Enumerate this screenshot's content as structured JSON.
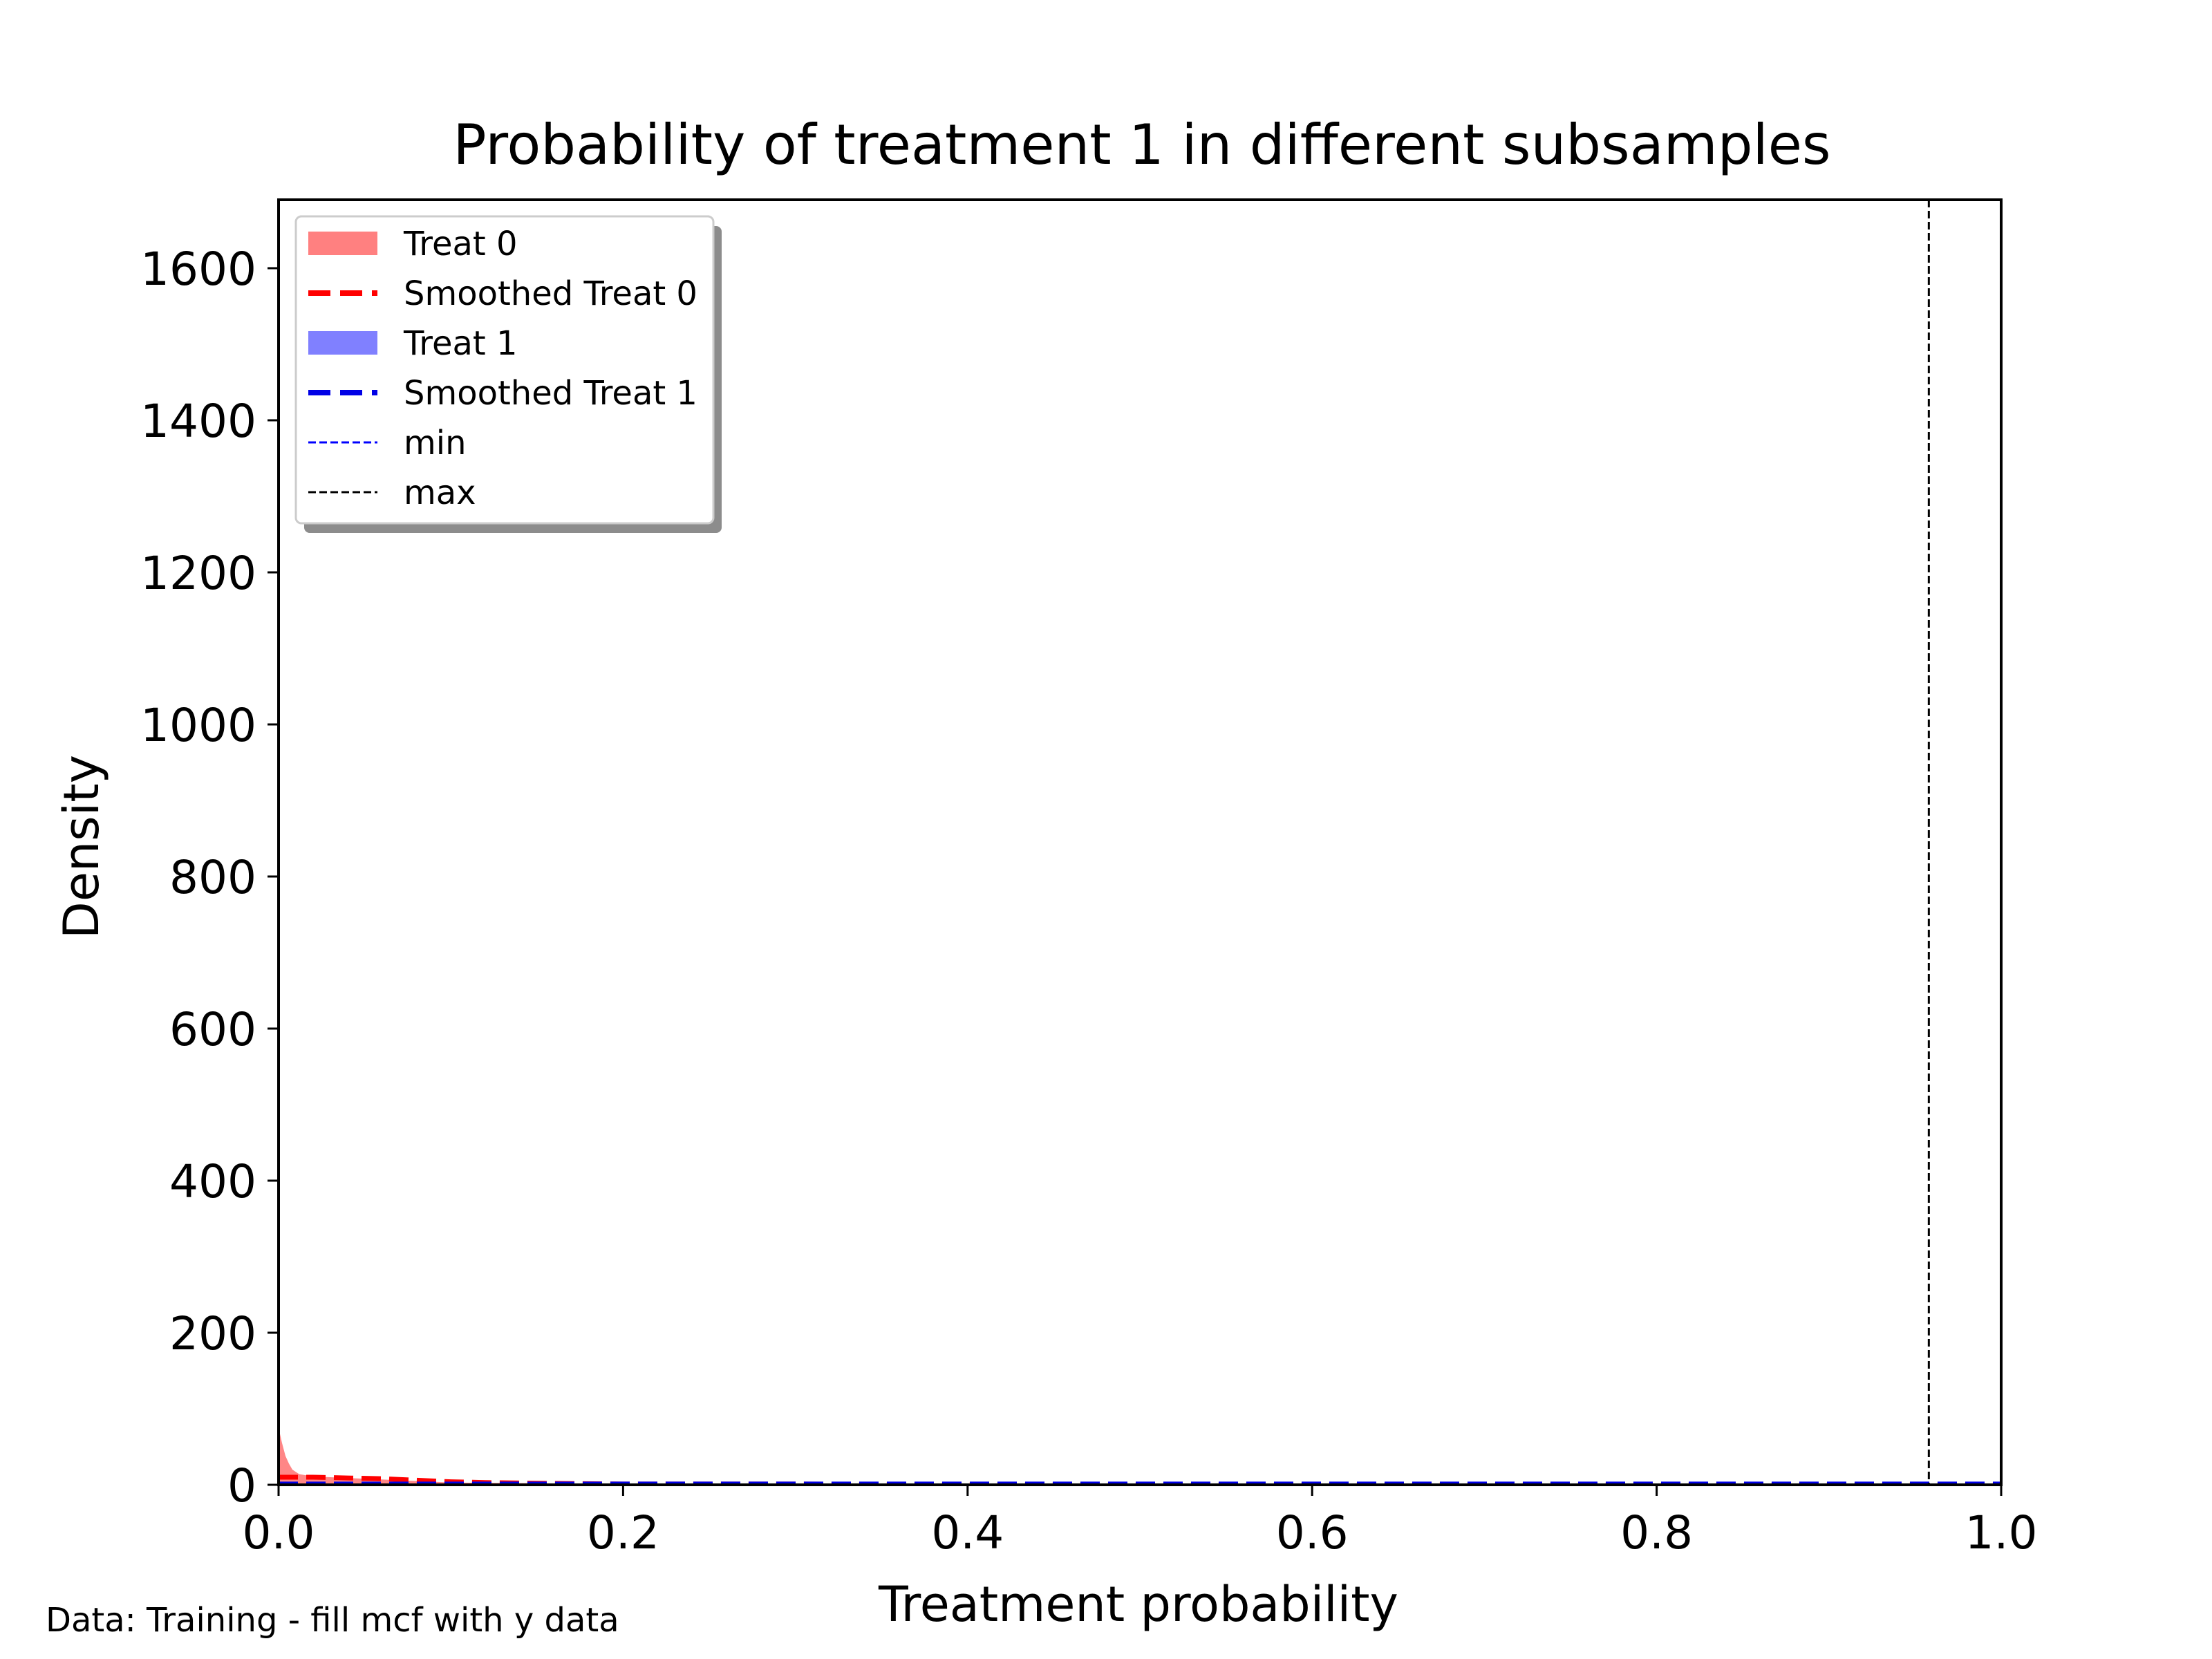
{
  "chart_data": {
    "type": "area",
    "title": "Probability of treatment 1 in different subsamples",
    "xlabel": "Treatment probability",
    "ylabel": "Density",
    "xlim": [
      0.0,
      1.0
    ],
    "ylim": [
      0,
      1690
    ],
    "xticks": [
      0.0,
      0.2,
      0.4,
      0.6,
      0.8,
      1.0
    ],
    "xtick_labels": [
      "0.0",
      "0.2",
      "0.4",
      "0.6",
      "0.8",
      "1.0"
    ],
    "yticks": [
      0,
      200,
      400,
      600,
      800,
      1000,
      1200,
      1400,
      1600
    ],
    "ytick_labels": [
      "0",
      "200",
      "400",
      "600",
      "800",
      "1000",
      "1200",
      "1400",
      "1600"
    ],
    "grid": false,
    "legend_position": "top-left",
    "series": [
      {
        "name": "Treat 0",
        "kind": "histogram-fill",
        "color": "#ff8080",
        "x": [
          0.0,
          0.002,
          0.004,
          0.006,
          0.008,
          0.012,
          0.02,
          0.04,
          0.07,
          0.1,
          0.15,
          0.2
        ],
        "y": [
          75,
          55,
          38,
          28,
          20,
          14,
          11,
          9,
          6,
          3,
          2,
          1
        ]
      },
      {
        "name": "Smoothed Treat 0",
        "kind": "dashed-line",
        "color": "#ff0000",
        "x": [
          0.0,
          0.02,
          0.04,
          0.06,
          0.08,
          0.1,
          0.12,
          0.15,
          0.2,
          0.3,
          0.5,
          0.7,
          0.9,
          1.0
        ],
        "y": [
          10,
          10,
          9,
          8,
          6,
          4,
          3,
          2,
          1,
          1,
          0,
          0,
          0,
          0
        ]
      },
      {
        "name": "Treat 1",
        "kind": "histogram-fill",
        "color": "#8080ff",
        "x": [
          0.0,
          0.2,
          0.4,
          0.6,
          0.8,
          1.0
        ],
        "y": [
          1,
          1,
          1,
          1,
          1,
          1
        ]
      },
      {
        "name": "Smoothed Treat 1",
        "kind": "dashed-line",
        "color": "#0000e6",
        "x": [
          0.0,
          0.1,
          0.2,
          0.3,
          0.4,
          0.5,
          0.6,
          0.7,
          0.8,
          0.9,
          1.0
        ],
        "y": [
          1,
          1,
          1,
          1,
          1,
          1,
          1,
          1,
          1,
          1,
          1
        ]
      }
    ],
    "reference_lines": [
      {
        "name": "min",
        "color": "#0000ff",
        "x": 0.0
      },
      {
        "name": "max",
        "color": "#000000",
        "x": 0.958
      }
    ]
  },
  "footnote": "Data: Training - fill mcf with y data"
}
